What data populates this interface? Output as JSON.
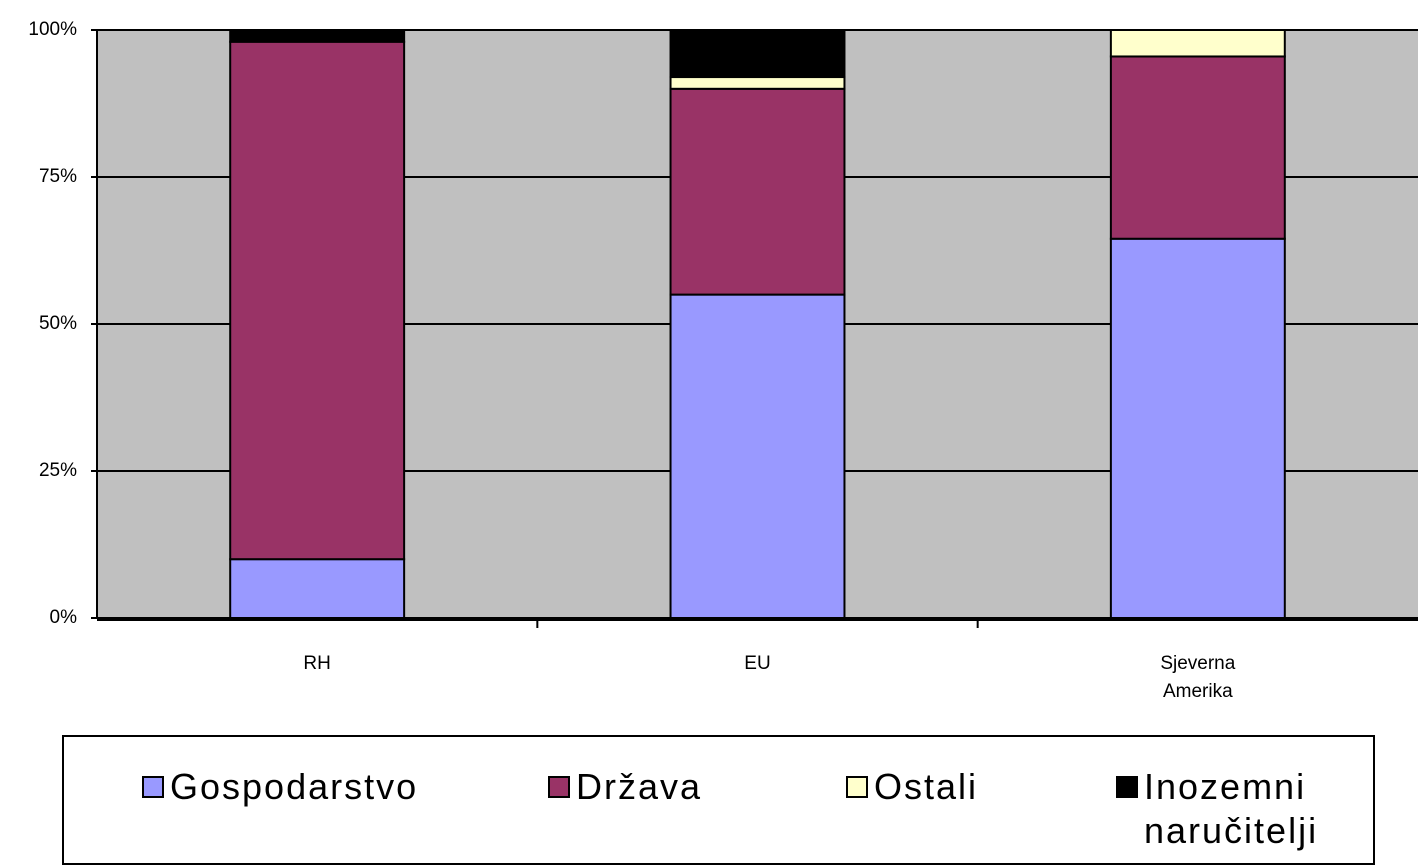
{
  "chart_data": {
    "type": "stacked_bar",
    "categories": [
      "RH",
      "EU",
      "Sjeverna Amerika"
    ],
    "series": [
      {
        "name": "Gospodarstvo",
        "color": "#9999ff",
        "values": [
          10,
          55,
          64.5
        ]
      },
      {
        "name": "Država",
        "color": "#993366",
        "values": [
          88,
          35,
          31
        ]
      },
      {
        "name": "Ostali",
        "color": "#ffffcc",
        "values": [
          0,
          2,
          4.5
        ]
      },
      {
        "name": "Inozemni naručitelji",
        "color": "#000000",
        "values": [
          2,
          8,
          0
        ]
      }
    ],
    "ylim": [
      0,
      100
    ],
    "yticks": [
      {
        "value": 0,
        "label": "0%"
      },
      {
        "value": 25,
        "label": "25%"
      },
      {
        "value": 50,
        "label": "50%"
      },
      {
        "value": 75,
        "label": "75%"
      },
      {
        "value": 100,
        "label": "100%"
      }
    ],
    "grid": true,
    "legend": "bottom"
  }
}
